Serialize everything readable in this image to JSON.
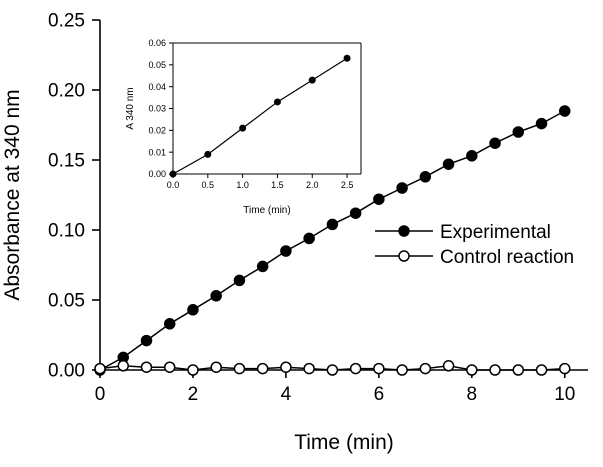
{
  "chart_data": [
    {
      "type": "line",
      "xlabel": "Time (min)",
      "ylabel": "Absorbance at 340 nm",
      "xlim": [
        0,
        10.5
      ],
      "ylim": [
        0,
        0.25
      ],
      "xticks": [
        0,
        2,
        4,
        6,
        8,
        10
      ],
      "yticks": [
        0.0,
        0.05,
        0.1,
        0.15,
        0.2,
        0.25
      ],
      "xtick_labels": [
        "0",
        "2",
        "4",
        "6",
        "8",
        "10"
      ],
      "ytick_labels": [
        "0.00",
        "0.05",
        "0.10",
        "0.15",
        "0.20",
        "0.25"
      ],
      "legend_position": "center-right",
      "grid": false,
      "series": [
        {
          "name": "Experimental",
          "marker": "filled-circle",
          "color": "#000000",
          "x": [
            0,
            0.5,
            1.0,
            1.5,
            2.0,
            2.5,
            3.0,
            3.5,
            4.0,
            4.5,
            5.0,
            5.5,
            6.0,
            6.5,
            7.0,
            7.5,
            8.0,
            8.5,
            9.0,
            9.5,
            10.0
          ],
          "y": [
            0.0,
            0.009,
            0.021,
            0.033,
            0.043,
            0.053,
            0.064,
            0.074,
            0.085,
            0.094,
            0.104,
            0.112,
            0.122,
            0.13,
            0.138,
            0.147,
            0.153,
            0.162,
            0.17,
            0.176,
            0.185
          ]
        },
        {
          "name": "Control reaction",
          "marker": "open-circle",
          "color": "#000000",
          "x": [
            0,
            0.5,
            1.0,
            1.5,
            2.0,
            2.5,
            3.0,
            3.5,
            4.0,
            4.5,
            5.0,
            5.5,
            6.0,
            6.5,
            7.0,
            7.5,
            8.0,
            8.5,
            9.0,
            9.5,
            10.0
          ],
          "y": [
            0.001,
            0.003,
            0.002,
            0.002,
            0.0,
            0.002,
            0.001,
            0.001,
            0.002,
            0.001,
            0.0,
            0.001,
            0.001,
            0.0,
            0.001,
            0.003,
            0.0,
            0.0,
            0.0,
            0.0,
            0.001
          ]
        }
      ]
    },
    {
      "type": "line",
      "xlabel": "Time (min)",
      "ylabel": "A 340 nm",
      "xlim": [
        0,
        2.7
      ],
      "ylim": [
        0,
        0.06
      ],
      "xticks": [
        0,
        0.5,
        1.0,
        1.5,
        2.0,
        2.5
      ],
      "yticks": [
        0.0,
        0.01,
        0.02,
        0.03,
        0.04,
        0.05,
        0.06
      ],
      "xtick_labels": [
        "0.0",
        "0.5",
        "1.0",
        "1.5",
        "2.0",
        "2.5"
      ],
      "ytick_labels": [
        "0.00",
        "0.01",
        "0.02",
        "0.03",
        "0.04",
        "0.05",
        "0.06"
      ],
      "series": [
        {
          "marker": "filled-circle",
          "color": "#000000",
          "x": [
            0,
            0.5,
            1.0,
            1.5,
            2.0,
            2.5
          ],
          "y": [
            0.0,
            0.009,
            0.021,
            0.033,
            0.043,
            0.053
          ]
        }
      ]
    }
  ]
}
